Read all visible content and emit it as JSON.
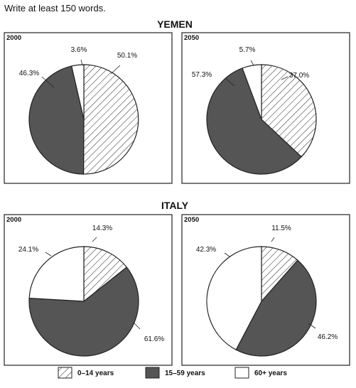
{
  "instruction": "Write at least 150 words.",
  "colors": {
    "young": "#ffffff",
    "working": "#555555",
    "elderly": "#ffffff",
    "stroke": "#222222"
  },
  "chart_data": {
    "type": "pie",
    "categories": [
      "0–14 years",
      "15–59 years",
      "60+ years"
    ],
    "legend": [
      {
        "label": "0–14 years",
        "pattern": "hatch"
      },
      {
        "label": "15–59 years",
        "pattern": "dark"
      },
      {
        "label": "60+ years",
        "pattern": "white"
      }
    ],
    "legend_position": "bottom",
    "countries": [
      {
        "name": "YEMEN",
        "pies": [
          {
            "year": "2000",
            "values": [
              50.1,
              46.3,
              3.6
            ],
            "labels": [
              "50.1%",
              "46.3%",
              "3.6%"
            ]
          },
          {
            "year": "2050",
            "values": [
              37.0,
              57.3,
              5.7
            ],
            "labels": [
              "37.0%",
              "57.3%",
              "5.7%"
            ]
          }
        ]
      },
      {
        "name": "ITALY",
        "pies": [
          {
            "year": "2000",
            "values": [
              14.3,
              61.6,
              24.1
            ],
            "labels": [
              "14.3%",
              "61.6%",
              "24.1%"
            ]
          },
          {
            "year": "2050",
            "values": [
              11.5,
              46.2,
              42.3
            ],
            "labels": [
              "11.5%",
              "46.2%",
              "42.3%"
            ]
          }
        ]
      }
    ]
  }
}
